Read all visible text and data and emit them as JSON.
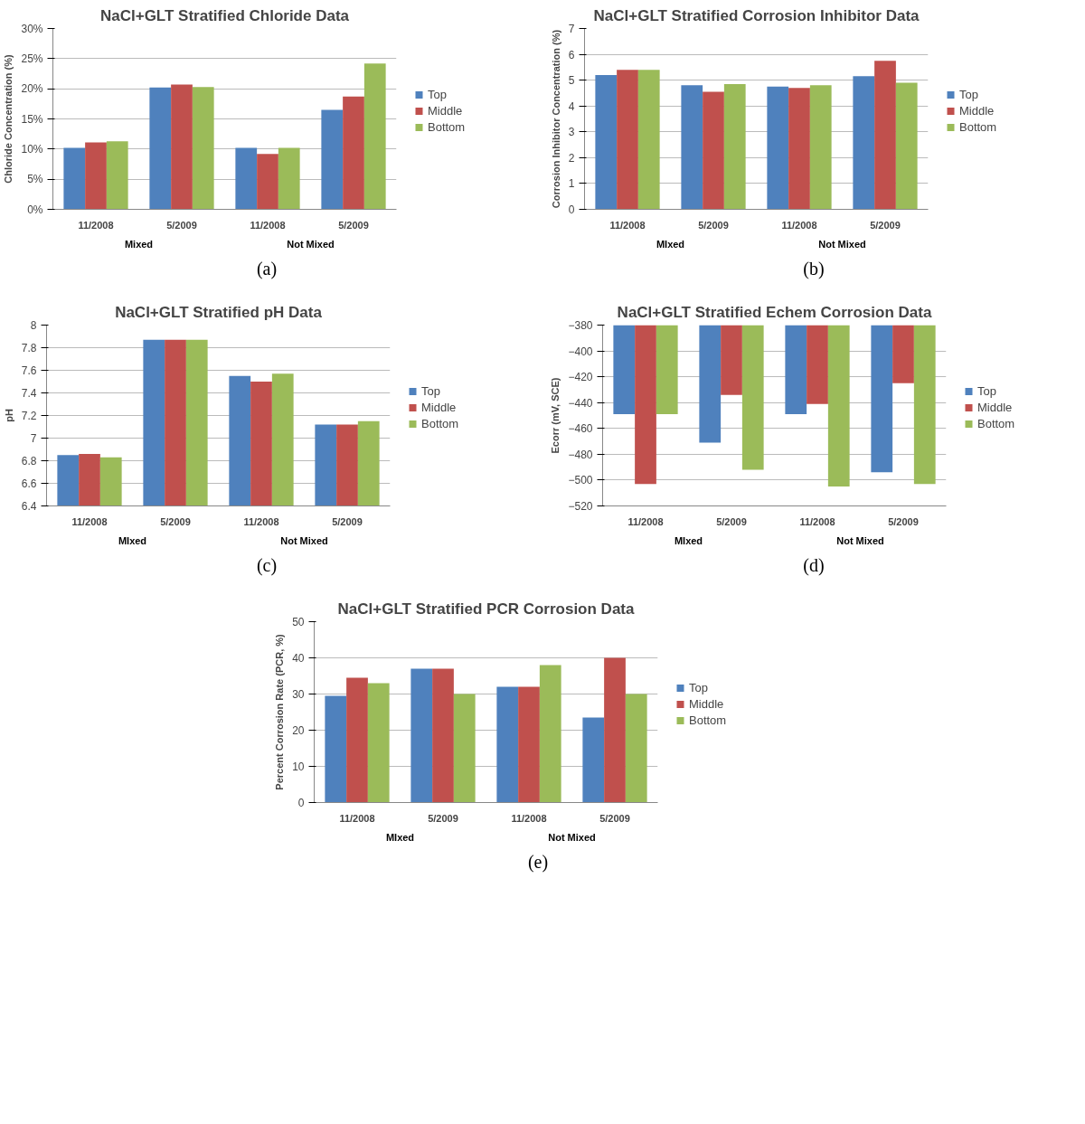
{
  "chart_data": [
    {
      "type": "bar",
      "title": "NaCl+GLT Stratified Chloride Data",
      "ylabel": "Chloride Concentration (%)",
      "categories": [
        "11/2008",
        "5/2009",
        "11/2008",
        "5/2009"
      ],
      "series": [
        {
          "name": "Top",
          "color": "#4f81bd",
          "values": [
            10.2,
            20.2,
            10.2,
            16.5
          ]
        },
        {
          "name": "Middle",
          "color": "#c0504d",
          "values": [
            11.1,
            20.7,
            9.2,
            18.7
          ]
        },
        {
          "name": "Bottom",
          "color": "#9bbb59",
          "values": [
            11.3,
            20.3,
            10.2,
            24.2
          ]
        }
      ],
      "ylim": [
        0,
        30
      ],
      "yticks": [
        {
          "value": 0,
          "label": "0%"
        },
        {
          "value": 5,
          "label": "5%"
        },
        {
          "value": 10,
          "label": "10%"
        },
        {
          "value": 15,
          "label": "15%"
        },
        {
          "value": 20,
          "label": "20%"
        },
        {
          "value": 25,
          "label": "25%"
        },
        {
          "value": 30,
          "label": "30%"
        }
      ],
      "grid": "y",
      "legend": "right",
      "annotations": [
        "Mixed",
        "Not Mixed",
        "(a)"
      ]
    },
    {
      "type": "bar",
      "title": "NaCl+GLT Stratified Corrosion Inhibitor Data",
      "ylabel": "Corrosion Inhibitor Concentration (%)",
      "categories": [
        "11/2008",
        "5/2009",
        "11/2008",
        "5/2009"
      ],
      "series": [
        {
          "name": "Top",
          "color": "#4f81bd",
          "values": [
            5.2,
            4.8,
            4.75,
            5.15
          ]
        },
        {
          "name": "Middle",
          "color": "#c0504d",
          "values": [
            5.4,
            4.55,
            4.7,
            5.75
          ]
        },
        {
          "name": "Bottom",
          "color": "#9bbb59",
          "values": [
            5.4,
            4.85,
            4.8,
            4.9
          ]
        }
      ],
      "ylim": [
        0,
        7
      ],
      "yticks": [
        0,
        1,
        2,
        3,
        4,
        5,
        6,
        7
      ],
      "grid": "y",
      "legend": "right",
      "annotations": [
        "MIxed",
        "Not Mixed",
        "(b)"
      ]
    },
    {
      "type": "bar",
      "title": "NaCl+GLT Stratified pH Data",
      "ylabel": "pH",
      "categories": [
        "11/2008",
        "5/2009",
        "11/2008",
        "5/2009"
      ],
      "series": [
        {
          "name": "Top",
          "color": "#4f81bd",
          "values": [
            6.85,
            7.87,
            7.55,
            7.12
          ]
        },
        {
          "name": "Middle",
          "color": "#c0504d",
          "values": [
            6.86,
            7.87,
            7.5,
            7.12
          ]
        },
        {
          "name": "Bottom",
          "color": "#9bbb59",
          "values": [
            6.83,
            7.87,
            7.57,
            7.15
          ]
        }
      ],
      "ylim": [
        6.4,
        8
      ],
      "yticks": [
        6.4,
        6.6,
        6.8,
        7,
        7.2,
        7.4,
        7.6,
        7.8,
        8
      ],
      "grid": "y",
      "legend": "right",
      "annotations": [
        "MIxed",
        "Not Mixed",
        "(c)"
      ]
    },
    {
      "type": "bar",
      "title": "NaCl+GLT Stratified Echem Corrosion Data",
      "ylabel": "Ecorr (mV, SCE)",
      "categories": [
        "11/2008",
        "5/2009",
        "11/2008",
        "5/2009"
      ],
      "series": [
        {
          "name": "Top",
          "color": "#4f81bd",
          "values": [
            -449,
            -471,
            -449,
            -494
          ]
        },
        {
          "name": "Middle",
          "color": "#c0504d",
          "values": [
            -503,
            -434,
            -441,
            -425
          ]
        },
        {
          "name": "Bottom",
          "color": "#9bbb59",
          "values": [
            -449,
            -492,
            -505,
            -503
          ]
        }
      ],
      "ylim": [
        -520,
        -380
      ],
      "yticks": [
        -520,
        -500,
        -480,
        -460,
        -440,
        -420,
        -400,
        -380
      ],
      "grid": "y",
      "legend": "right",
      "annotations": [
        "MIxed",
        "Not Mixed",
        "(d)"
      ]
    },
    {
      "type": "bar",
      "title": "NaCl+GLT Stratified PCR Corrosion Data",
      "ylabel": "Percent Corrosion Rate (PCR, %)",
      "categories": [
        "11/2008",
        "5/2009",
        "11/2008",
        "5/2009"
      ],
      "series": [
        {
          "name": "Top",
          "color": "#4f81bd",
          "values": [
            29.5,
            37,
            32,
            23.5
          ]
        },
        {
          "name": "Middle",
          "color": "#c0504d",
          "values": [
            34.5,
            37,
            32,
            40
          ]
        },
        {
          "name": "Bottom",
          "color": "#9bbb59",
          "values": [
            33,
            30,
            38,
            30
          ]
        }
      ],
      "ylim": [
        0,
        50
      ],
      "yticks": [
        0,
        10,
        20,
        30,
        40,
        50
      ],
      "grid": "y",
      "legend": "right",
      "annotations": [
        "MIxed",
        "Not Mixed",
        "(e)"
      ]
    }
  ]
}
